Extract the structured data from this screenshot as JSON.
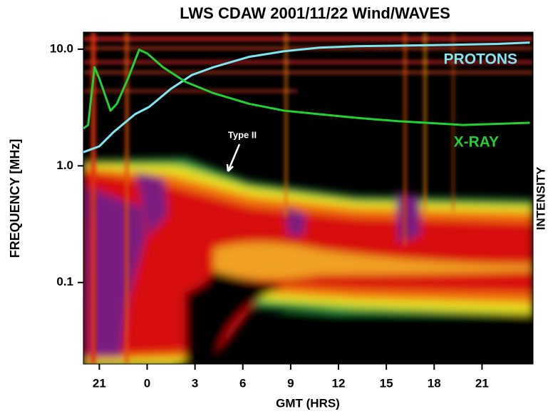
{
  "chart_data": {
    "type": "spectrogram",
    "title": "LWS CDAW  2001/11/22  Wind/WAVES",
    "x_label": "GMT (HRS)",
    "y_label": "FREQUENCY [MHz]",
    "intensity_label": "INTENSITY",
    "annotation": "Type II",
    "log_y": true,
    "xlim": [
      -4,
      24.2
    ],
    "ylim": [
      0.02,
      14
    ],
    "xticks": [
      {
        "value": -3,
        "label": "21"
      },
      0,
      3,
      6,
      9,
      12,
      15,
      18,
      21
    ],
    "yticks": [
      {
        "value": 10,
        "label": "10.0"
      },
      {
        "value": 1,
        "label": "1.0"
      },
      0.1
    ],
    "series": [
      {
        "name": "PROTONS",
        "color": "#7fe6f2",
        "x": [
          -4,
          -3,
          -2.1,
          -0.76,
          0.13,
          1.47,
          2.8,
          4.15,
          6.4,
          8.6,
          10.8,
          13.1,
          17.5,
          22,
          24
        ],
        "values": [
          1.31,
          1.47,
          1.95,
          2.77,
          3.2,
          4.55,
          6.0,
          7.0,
          8.6,
          9.6,
          10.3,
          10.6,
          10.8,
          11.1,
          11.4
        ]
      },
      {
        "name": "X-RAY",
        "color": "#22d033",
        "x": [
          -4,
          -3.7,
          -3.3,
          -3,
          -2.3,
          -1.9,
          -1.2,
          -0.5,
          0,
          1,
          2.4,
          4.15,
          6.4,
          8.6,
          10.8,
          13.1,
          15.8,
          17.5,
          19.8,
          24
        ],
        "values": [
          2.09,
          2.24,
          7.0,
          5.6,
          2.97,
          3.4,
          5.6,
          9.9,
          9.2,
          7.0,
          5.25,
          4.2,
          3.4,
          2.97,
          2.77,
          2.58,
          2.41,
          2.34,
          2.24,
          2.34
        ]
      }
    ]
  }
}
